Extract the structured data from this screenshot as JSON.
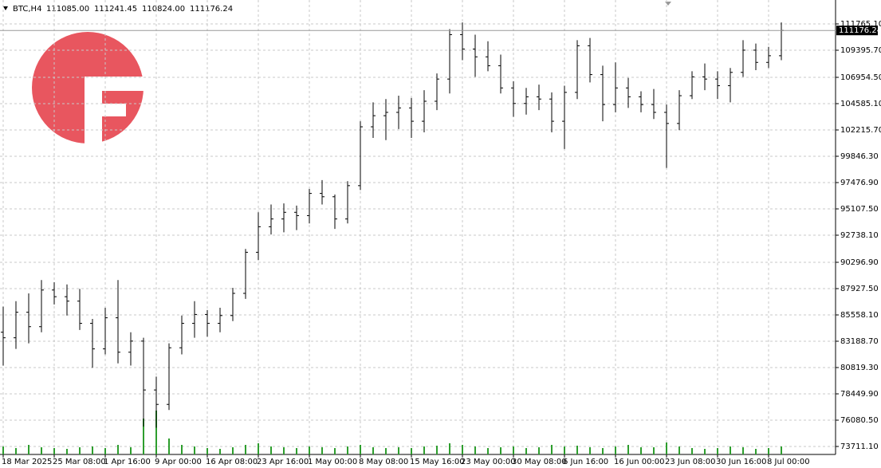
{
  "chart_data": {
    "type": "ohlc",
    "header": {
      "symbol": "BTC,H4",
      "open": "111085.00",
      "high": "111241.45",
      "low": "110824.00",
      "close": "111176.24"
    },
    "last_price": {
      "value": 111176.24,
      "label": "111176.24"
    },
    "categories": [
      "18 Mar 2025",
      null,
      null,
      null,
      "25 Mar 08:00",
      null,
      null,
      null,
      "1 Apr 16:00",
      null,
      null,
      null,
      "9 Apr 00:00",
      null,
      null,
      null,
      "16 Apr 08:00",
      null,
      null,
      null,
      "23 Apr 16:00",
      null,
      null,
      null,
      "1 May 00:00",
      null,
      null,
      null,
      "8 May 08:00",
      null,
      null,
      null,
      "15 May 16:00",
      null,
      null,
      null,
      "23 May 00:00",
      null,
      null,
      null,
      "30 May 08:00",
      null,
      null,
      null,
      "6 Jun 16:00",
      null,
      null,
      null,
      "16 Jun 00:00",
      null,
      null,
      null,
      "23 Jun 08:00",
      null,
      null,
      null,
      "30 Jun 16:00",
      null,
      null,
      null,
      "8 Jul 00:00",
      null
    ],
    "open": [
      84000,
      83500,
      85800,
      84500,
      87800,
      87200,
      86800,
      84800,
      82500,
      85300,
      82200,
      83200,
      78800,
      77500,
      82600,
      84800,
      85600,
      84800,
      85500,
      87500,
      91200,
      93500,
      94200,
      94800,
      94500,
      96500,
      96200,
      94200,
      97200,
      102500,
      103500,
      103800,
      104200,
      103000,
      104800,
      106800,
      110800,
      109500,
      108800,
      108000,
      106000,
      104600,
      105200,
      105000,
      103000,
      105600,
      109800,
      107200,
      104500,
      106000,
      105200,
      104500,
      103800,
      102800,
      105300,
      107000,
      106800,
      106200,
      107400,
      109400,
      108300,
      108900
    ],
    "high": [
      86300,
      86800,
      87500,
      88700,
      88500,
      88300,
      87900,
      85200,
      86200,
      88700,
      84000,
      83500,
      80000,
      83000,
      85500,
      86800,
      86000,
      86200,
      88000,
      91500,
      94800,
      95500,
      95600,
      95400,
      96900,
      97700,
      96400,
      97600,
      103000,
      104700,
      105000,
      105300,
      105100,
      105800,
      107300,
      111300,
      111900,
      110800,
      110200,
      109000,
      106600,
      106000,
      106300,
      105600,
      106200,
      110300,
      110500,
      108000,
      108300,
      106900,
      105700,
      105900,
      104500,
      105800,
      107500,
      108200,
      107500,
      107800,
      110300,
      110000,
      109700,
      111900
    ],
    "low": [
      81000,
      82500,
      83000,
      84000,
      86500,
      85500,
      84200,
      80800,
      82000,
      81200,
      81000,
      75500,
      75400,
      77000,
      82000,
      83500,
      83600,
      84000,
      85000,
      87000,
      90500,
      92800,
      93000,
      93200,
      93800,
      95500,
      93300,
      93800,
      96800,
      101500,
      101300,
      102300,
      101500,
      102000,
      104000,
      105500,
      108500,
      107000,
      107500,
      105500,
      103400,
      103600,
      104000,
      102000,
      100500,
      105000,
      106500,
      103000,
      103800,
      104200,
      103800,
      103200,
      98800,
      102200,
      105000,
      105800,
      105000,
      104700,
      107000,
      107600,
      107800,
      108500
    ],
    "close": [
      83500,
      85800,
      84500,
      87800,
      87200,
      86800,
      84800,
      82500,
      85300,
      82200,
      83200,
      78800,
      77500,
      82600,
      84800,
      85600,
      84800,
      85500,
      87500,
      91200,
      93500,
      94200,
      94800,
      94500,
      96500,
      96200,
      94200,
      97200,
      102500,
      103500,
      103800,
      104200,
      103000,
      104800,
      106800,
      110800,
      109500,
      108800,
      108000,
      106000,
      104600,
      105200,
      105000,
      103000,
      105600,
      109800,
      107200,
      104500,
      106000,
      105200,
      104500,
      103800,
      102800,
      105300,
      107000,
      106800,
      106200,
      107400,
      109400,
      108300,
      108900,
      111176.24
    ],
    "volume": [
      10,
      8,
      12,
      9,
      8,
      7,
      9,
      10,
      8,
      12,
      9,
      45,
      55,
      20,
      12,
      10,
      8,
      7,
      9,
      12,
      14,
      10,
      9,
      8,
      10,
      9,
      8,
      10,
      12,
      9,
      8,
      9,
      8,
      10,
      11,
      14,
      12,
      10,
      8,
      9,
      10,
      8,
      9,
      12,
      10,
      11,
      9,
      8,
      10,
      12,
      9,
      9,
      15,
      10,
      8,
      7,
      8,
      10,
      9,
      7,
      8,
      10
    ],
    "volume_lim": [
      0,
      60
    ],
    "color": "#000000",
    "volume_color": "#2e9e2e",
    "ylim": [
      72993,
      113919
    ],
    "yticks": [
      {
        "value": 73711.1,
        "label": "73711.10"
      },
      {
        "value": 76080.5,
        "label": "76080.50"
      },
      {
        "value": 78449.9,
        "label": "78449.90"
      },
      {
        "value": 80819.3,
        "label": "80819.30"
      },
      {
        "value": 83188.7,
        "label": "83188.70"
      },
      {
        "value": 85558.1,
        "label": "85558.10"
      },
      {
        "value": 87927.5,
        "label": "87927.50"
      },
      {
        "value": 90296.9,
        "label": "90296.90"
      },
      {
        "value": 92738.1,
        "label": "92738.10"
      },
      {
        "value": 95107.5,
        "label": "95107.50"
      },
      {
        "value": 97476.9,
        "label": "97476.90"
      },
      {
        "value": 99846.3,
        "label": "99846.30"
      },
      {
        "value": 102215.7,
        "label": "102215.70"
      },
      {
        "value": 104585.1,
        "label": "104585.10"
      },
      {
        "value": 106954.5,
        "label": "106954.50"
      },
      {
        "value": 109395.7,
        "label": "109395.70"
      },
      {
        "value": 111765.1,
        "label": "111765.10"
      }
    ],
    "grid": true
  }
}
